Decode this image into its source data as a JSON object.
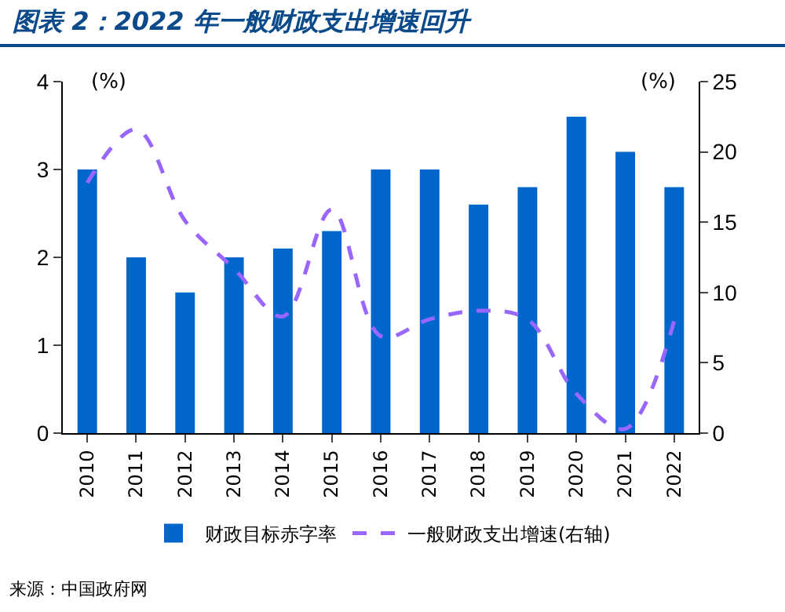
{
  "chart_data": {
    "type": "bar",
    "title": "图表 2：2022 年一般财政支出增速回升",
    "categories": [
      "2010",
      "2011",
      "2012",
      "2013",
      "2014",
      "2015",
      "2016",
      "2017",
      "2018",
      "2019",
      "2020",
      "2021",
      "2022"
    ],
    "series": [
      {
        "name": "财政目标赤字率",
        "color": "#0066cc",
        "values": [
          3,
          2,
          1.6,
          2,
          2.1,
          2.3,
          3,
          3,
          2.6,
          2.8,
          3.6,
          3.2,
          2.8
        ]
      },
      {
        "name": "一般财政支出增速(右轴)",
        "type": "line",
        "axis": "y2",
        "color": "#9966ff",
        "line_style": "dashed",
        "values": [
          17.8,
          21.6,
          15.1,
          11.7,
          8.3,
          15.9,
          6.9,
          8.1,
          8.7,
          8.1,
          2.8,
          0.3,
          8
        ]
      }
    ],
    "ylabel": "(%)",
    "y2label": "(%)",
    "ylim": [
      0,
      4
    ],
    "yticks": [
      0,
      1,
      2,
      3,
      4
    ],
    "y2lim": [
      0,
      25
    ],
    "y2ticks": [
      0,
      5,
      10,
      15,
      20,
      25
    ],
    "grid": false,
    "legend": "bottom",
    "annotations": [
      "来源：中国政府网"
    ]
  }
}
